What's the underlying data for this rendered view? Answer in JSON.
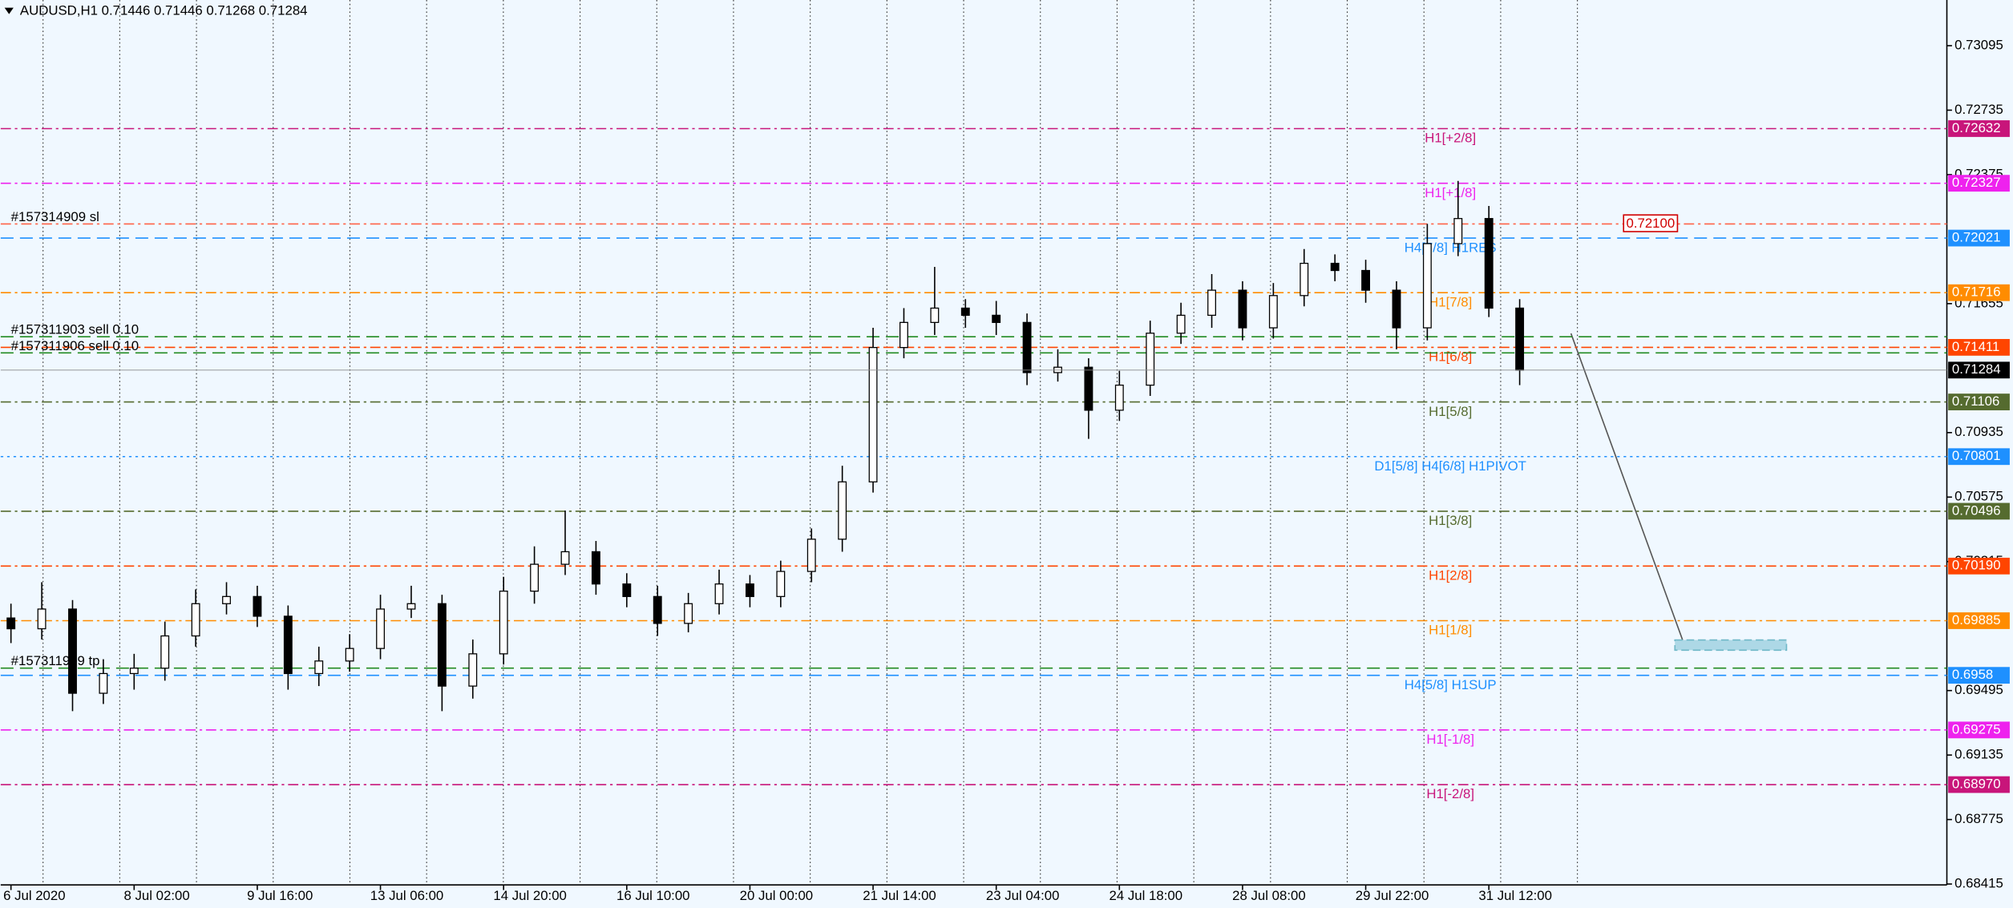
{
  "chart_data": {
    "type": "candlestick",
    "title": "AUDUSD,H1",
    "header_values": [
      0.71446,
      0.71446,
      0.71268,
      0.71284
    ],
    "categories": [
      "6 Jul 2020",
      null,
      null,
      null,
      "8 Jul 02:00",
      null,
      null,
      null,
      "9 Jul 16:00",
      null,
      null,
      null,
      "13 Jul 06:00",
      null,
      null,
      null,
      "14 Jul 20:00",
      null,
      null,
      null,
      "16 Jul 10:00",
      null,
      null,
      null,
      "20 Jul 00:00",
      null,
      null,
      null,
      "21 Jul 14:00",
      null,
      null,
      null,
      "23 Jul 04:00",
      null,
      null,
      null,
      "24 Jul 18:00",
      null,
      null,
      null,
      "28 Jul 08:00",
      null,
      null,
      null,
      "29 Jul 22:00",
      null,
      null,
      null,
      "31 Jul 12:00",
      null
    ],
    "open": [
      0.699,
      0.6984,
      0.6995,
      0.6948,
      0.6959,
      0.6962,
      0.698,
      0.6998,
      0.7002,
      0.6991,
      0.6959,
      0.6966,
      0.6973,
      0.6995,
      0.6998,
      0.6952,
      0.697,
      0.7005,
      0.702,
      0.7027,
      0.7009,
      0.7002,
      0.6987,
      0.6998,
      0.7009,
      0.7002,
      0.7016,
      0.7034,
      0.7066,
      0.7141,
      0.7155,
      0.7163,
      0.7159,
      0.7155,
      0.7127,
      0.713,
      0.7106,
      0.712,
      0.7149,
      0.7159,
      0.7173,
      0.7152,
      0.717,
      0.7188,
      0.7184,
      0.7173,
      0.7152,
      0.7199,
      0.7213,
      0.7163
    ],
    "high": [
      0.6998,
      0.701,
      0.7,
      0.6967,
      0.697,
      0.6988,
      0.7006,
      0.701,
      0.7008,
      0.6997,
      0.6974,
      0.6981,
      0.7003,
      0.7008,
      0.7003,
      0.6978,
      0.7013,
      0.703,
      0.705,
      0.7033,
      0.7015,
      0.7008,
      0.7004,
      0.7017,
      0.7014,
      0.7022,
      0.704,
      0.7075,
      0.7152,
      0.7163,
      0.7186,
      0.7168,
      0.7167,
      0.716,
      0.714,
      0.7135,
      0.7128,
      0.7156,
      0.7166,
      0.7182,
      0.7178,
      0.7177,
      0.7196,
      0.7193,
      0.719,
      0.7178,
      0.721,
      0.7234,
      0.722,
      0.7168
    ],
    "low": [
      0.6976,
      0.6978,
      0.6938,
      0.6942,
      0.695,
      0.6955,
      0.6974,
      0.6992,
      0.6985,
      0.695,
      0.6952,
      0.696,
      0.6967,
      0.699,
      0.6938,
      0.6945,
      0.6964,
      0.6998,
      0.7014,
      0.7003,
      0.6996,
      0.698,
      0.6982,
      0.6992,
      0.6996,
      0.6996,
      0.701,
      0.7027,
      0.706,
      0.7135,
      0.7148,
      0.7152,
      0.7148,
      0.712,
      0.7122,
      0.709,
      0.71,
      0.7114,
      0.7143,
      0.7152,
      0.7145,
      0.7146,
      0.7164,
      0.7178,
      0.7166,
      0.714,
      0.7145,
      0.7192,
      0.7158,
      0.712
    ],
    "close": [
      0.6984,
      0.6995,
      0.6948,
      0.6959,
      0.6962,
      0.698,
      0.6998,
      0.7002,
      0.6991,
      0.6959,
      0.6966,
      0.6973,
      0.6995,
      0.6998,
      0.6952,
      0.697,
      0.7005,
      0.702,
      0.7027,
      0.7009,
      0.7002,
      0.6987,
      0.6998,
      0.7009,
      0.7002,
      0.7016,
      0.7034,
      0.7066,
      0.7141,
      0.7155,
      0.7163,
      0.7159,
      0.7155,
      0.7127,
      0.713,
      0.7106,
      0.712,
      0.7149,
      0.7159,
      0.7173,
      0.7152,
      0.717,
      0.7188,
      0.7184,
      0.7173,
      0.7152,
      0.7199,
      0.7213,
      0.7163,
      0.71284
    ],
    "bull_color": "#ffffff",
    "bear_color": "#000000",
    "ylim": [
      0.6841,
      0.7335
    ],
    "yticks": [
      0.73095,
      0.72735,
      0.72375,
      0.71655,
      0.70935,
      0.70575,
      0.70215,
      0.69495,
      0.69135,
      0.68775,
      0.68415
    ],
    "levels": [
      {
        "name": "H1[+2/8]",
        "value": 0.72632,
        "color": "#c8157a",
        "style": "dashdot"
      },
      {
        "name": "H1[+1/8]",
        "value": 0.72327,
        "color": "#ee22ee",
        "style": "dashdot"
      },
      {
        "name": "H4[7/8] H1RES",
        "value": 0.72021,
        "color": "#1e90ff",
        "style": "dashed"
      },
      {
        "name": "H1[7/8]",
        "value": 0.71716,
        "color": "#ff8c00",
        "style": "dashdot"
      },
      {
        "name": "H1[6/8]",
        "value": 0.71411,
        "color": "#ff4500",
        "style": "dashdot"
      },
      {
        "name": "H1[5/8]",
        "value": 0.71106,
        "color": "#556b2f",
        "style": "dashdot"
      },
      {
        "name": "D1[5/8] H4[6/8] H1PIVOT",
        "value": 0.70801,
        "color": "#1e90ff",
        "style": "dotted"
      },
      {
        "name": "H1[3/8]",
        "value": 0.70496,
        "color": "#556b2f",
        "style": "dashdot"
      },
      {
        "name": "H1[2/8]",
        "value": 0.7019,
        "value_label": "0.70190",
        "color": "#ff4500",
        "style": "dashdot"
      },
      {
        "name": "H1[1/8]",
        "value": 0.69885,
        "color": "#ff8c00",
        "style": "dashdot"
      },
      {
        "name": "H4[5/8] H1SUP",
        "value": 0.6958,
        "color": "#1e90ff",
        "style": "dashed"
      },
      {
        "name": "H1[-1/8]",
        "value": 0.69275,
        "color": "#ee22ee",
        "style": "dashdot"
      },
      {
        "name": "H1[-2/8]",
        "value": 0.6897,
        "value_label": "0.68970",
        "color": "#c8157a",
        "style": "dashdot"
      }
    ],
    "orders": [
      {
        "label": "#157314909 sl",
        "price": 0.721,
        "price_label": "0.72100",
        "color": "#ff6347"
      },
      {
        "label": "#157311903 sell 0.10",
        "price": 0.7147,
        "color": "#228b22"
      },
      {
        "label": "#157311906 sell 0.10",
        "price": 0.7138,
        "color": "#228b22"
      },
      {
        "label": "#157311909 tp",
        "price": 0.6962,
        "color": "#228b22"
      }
    ]
  }
}
